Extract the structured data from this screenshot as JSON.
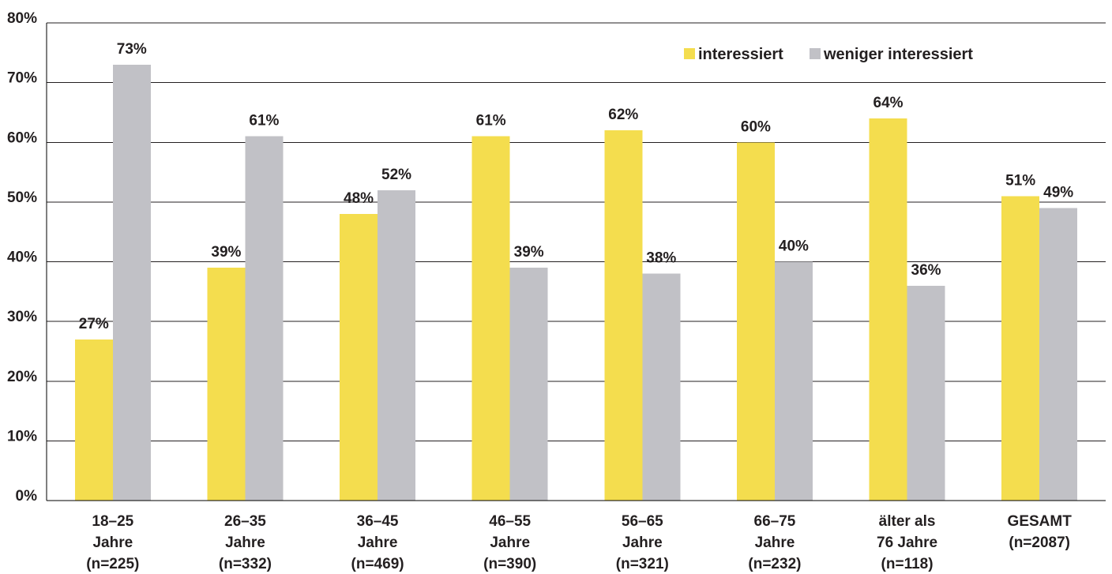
{
  "chart_data": {
    "type": "bar",
    "categories": [
      [
        "18–25",
        "Jahre",
        "(n=225)"
      ],
      [
        "26–35",
        "Jahre",
        "(n=332)"
      ],
      [
        "36–45",
        "Jahre",
        "(n=469)"
      ],
      [
        "46–55",
        "Jahre",
        "(n=390)"
      ],
      [
        "56–65",
        "Jahre",
        "(n=321)"
      ],
      [
        "66–75",
        "Jahre",
        "(n=232)"
      ],
      [
        "älter als",
        "76 Jahre",
        "(n=118)"
      ],
      [
        "GESAMT",
        "(n=2087)"
      ]
    ],
    "series": [
      {
        "name": "interessiert",
        "color": "#F4DD4E",
        "values": [
          27,
          39,
          48,
          61,
          62,
          60,
          64,
          51
        ],
        "labels": [
          "27%",
          "39%",
          "48%",
          "61%",
          "62%",
          "60%",
          "64%",
          "51%"
        ]
      },
      {
        "name": "weniger interessiert",
        "color": "#C1C1C6",
        "values": [
          73,
          61,
          52,
          39,
          38,
          40,
          36,
          49
        ],
        "labels": [
          "73%",
          "61%",
          "52%",
          "39%",
          "38%",
          "40%",
          "36%",
          "49%"
        ]
      }
    ],
    "ylim": [
      0,
      80
    ],
    "yticks": [
      0,
      10,
      20,
      30,
      40,
      50,
      60,
      70,
      80
    ],
    "ytick_labels": [
      "0%",
      "10%",
      "20%",
      "30%",
      "40%",
      "50%",
      "60%",
      "70%",
      "80%"
    ],
    "grid": true,
    "legend": "top-right"
  }
}
